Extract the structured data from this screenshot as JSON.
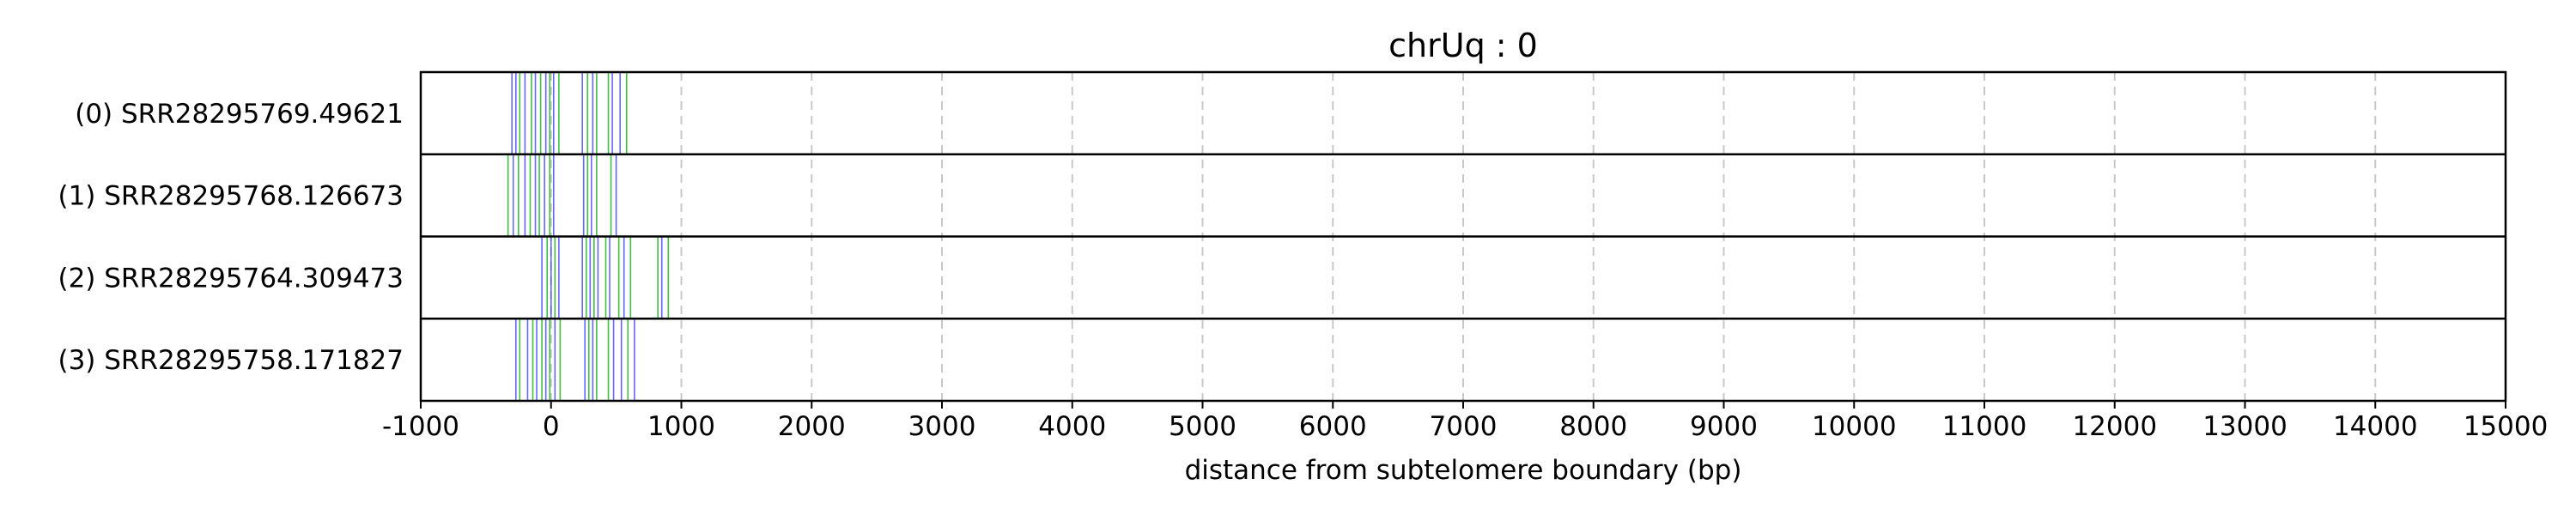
{
  "chart_data": {
    "type": "scatter",
    "title": "chrUq : 0",
    "xlabel": "distance from subtelomere boundary (bp)",
    "xlim": [
      -1000,
      15000
    ],
    "xticks": [
      -1000,
      0,
      1000,
      2000,
      3000,
      4000,
      5000,
      6000,
      7000,
      8000,
      9000,
      10000,
      11000,
      12000,
      13000,
      14000,
      15000
    ],
    "grid": "vertical dashed",
    "rows": [
      {
        "label": "(0) SRR28295769.49621",
        "marks": [
          {
            "x": -300,
            "color": "#3333ff"
          },
          {
            "x": -270,
            "color": "#3333ff"
          },
          {
            "x": -240,
            "color": "#00aa00"
          },
          {
            "x": -200,
            "color": "#3333ff"
          },
          {
            "x": -150,
            "color": "#00aa00"
          },
          {
            "x": -120,
            "color": "#3333ff"
          },
          {
            "x": -80,
            "color": "#00aa00"
          },
          {
            "x": -40,
            "color": "#3333ff"
          },
          {
            "x": -10,
            "color": "#00aa00"
          },
          {
            "x": 20,
            "color": "#3333ff"
          },
          {
            "x": 60,
            "color": "#00aa00"
          },
          {
            "x": 240,
            "color": "#3333ff"
          },
          {
            "x": 280,
            "color": "#00aa00"
          },
          {
            "x": 320,
            "color": "#3333ff"
          },
          {
            "x": 350,
            "color": "#00aa00"
          },
          {
            "x": 440,
            "color": "#00aa00"
          },
          {
            "x": 470,
            "color": "#3333ff"
          },
          {
            "x": 530,
            "color": "#3333ff"
          },
          {
            "x": 580,
            "color": "#00aa00"
          }
        ]
      },
      {
        "label": "(1) SRR28295768.126673",
        "marks": [
          {
            "x": -330,
            "color": "#00aa00"
          },
          {
            "x": -290,
            "color": "#3333ff"
          },
          {
            "x": -250,
            "color": "#00aa00"
          },
          {
            "x": -200,
            "color": "#3333ff"
          },
          {
            "x": -160,
            "color": "#00aa00"
          },
          {
            "x": -120,
            "color": "#3333ff"
          },
          {
            "x": -90,
            "color": "#00aa00"
          },
          {
            "x": -50,
            "color": "#3333ff"
          },
          {
            "x": -10,
            "color": "#00aa00"
          },
          {
            "x": 20,
            "color": "#3333ff"
          },
          {
            "x": 250,
            "color": "#3333ff"
          },
          {
            "x": 280,
            "color": "#00aa00"
          },
          {
            "x": 310,
            "color": "#3333ff"
          },
          {
            "x": 350,
            "color": "#00aa00"
          },
          {
            "x": 460,
            "color": "#00aa00"
          },
          {
            "x": 500,
            "color": "#3333ff"
          }
        ]
      },
      {
        "label": "(2) SRR28295764.309473",
        "marks": [
          {
            "x": -70,
            "color": "#3333ff"
          },
          {
            "x": -30,
            "color": "#00aa00"
          },
          {
            "x": 0,
            "color": "#3333ff"
          },
          {
            "x": 30,
            "color": "#00aa00"
          },
          {
            "x": 60,
            "color": "#3333ff"
          },
          {
            "x": 240,
            "color": "#3333ff"
          },
          {
            "x": 270,
            "color": "#00aa00"
          },
          {
            "x": 300,
            "color": "#3333ff"
          },
          {
            "x": 330,
            "color": "#00aa00"
          },
          {
            "x": 360,
            "color": "#3333ff"
          },
          {
            "x": 420,
            "color": "#00aa00"
          },
          {
            "x": 450,
            "color": "#3333ff"
          },
          {
            "x": 520,
            "color": "#00aa00"
          },
          {
            "x": 560,
            "color": "#3333ff"
          },
          {
            "x": 610,
            "color": "#00aa00"
          },
          {
            "x": 820,
            "color": "#00aa00"
          },
          {
            "x": 850,
            "color": "#3333ff"
          },
          {
            "x": 900,
            "color": "#00aa00"
          }
        ]
      },
      {
        "label": "(3) SRR28295758.171827",
        "marks": [
          {
            "x": -270,
            "color": "#3333ff"
          },
          {
            "x": -240,
            "color": "#00aa00"
          },
          {
            "x": -180,
            "color": "#3333ff"
          },
          {
            "x": -140,
            "color": "#00aa00"
          },
          {
            "x": -110,
            "color": "#3333ff"
          },
          {
            "x": -70,
            "color": "#00aa00"
          },
          {
            "x": -40,
            "color": "#3333ff"
          },
          {
            "x": -10,
            "color": "#00aa00"
          },
          {
            "x": 30,
            "color": "#3333ff"
          },
          {
            "x": 70,
            "color": "#00aa00"
          },
          {
            "x": 260,
            "color": "#3333ff"
          },
          {
            "x": 290,
            "color": "#00aa00"
          },
          {
            "x": 320,
            "color": "#3333ff"
          },
          {
            "x": 350,
            "color": "#00aa00"
          },
          {
            "x": 440,
            "color": "#00aa00"
          },
          {
            "x": 480,
            "color": "#3333ff"
          },
          {
            "x": 540,
            "color": "#3333ff"
          },
          {
            "x": 590,
            "color": "#00aa00"
          },
          {
            "x": 640,
            "color": "#3333ff"
          }
        ]
      }
    ]
  }
}
